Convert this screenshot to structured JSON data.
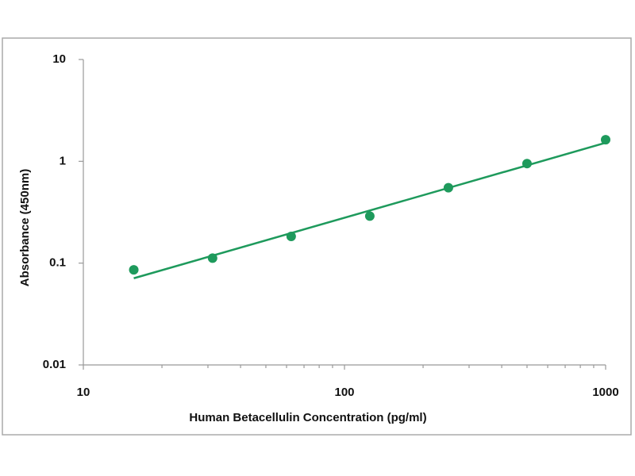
{
  "chart_data": {
    "type": "scatter",
    "x_label": "Human Betacellulin Concentration (pg/ml)",
    "y_label": "Absorbance (450nm)",
    "x": [
      15.6,
      31.25,
      62.5,
      125,
      250,
      500,
      1000
    ],
    "values": [
      0.086,
      0.112,
      0.183,
      0.29,
      0.55,
      0.95,
      1.63
    ],
    "color": "#1e9a5c",
    "fit": {
      "x": [
        15.6,
        1000
      ],
      "values": [
        0.071,
        1.52
      ]
    },
    "xlim": [
      10,
      1000
    ],
    "ylim": [
      0.01,
      10
    ],
    "xticks": [
      10,
      100,
      1000
    ],
    "xminorticks": [
      20,
      30,
      40,
      50,
      60,
      70,
      80,
      90,
      200,
      300,
      400,
      500,
      600,
      700,
      800,
      900
    ],
    "yticks": [
      0.01,
      0.1,
      1,
      10
    ],
    "xscale": "log",
    "yscale": "log",
    "grid": false
  }
}
